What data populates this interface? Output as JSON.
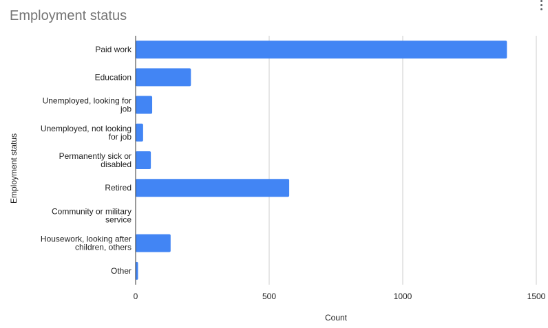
{
  "header": {
    "title": "Employment status"
  },
  "chart_data": {
    "type": "bar",
    "orientation": "horizontal",
    "title": "Employment status",
    "xlabel": "Count",
    "ylabel": "Employment status",
    "xlim": [
      0,
      1500
    ],
    "xticks": [
      0,
      500,
      1000,
      1500
    ],
    "grid": true,
    "legend": "none",
    "bar_color": "#4285f4",
    "categories": [
      [
        "Paid work"
      ],
      [
        "Education"
      ],
      [
        "Unemployed, looking for",
        "job"
      ],
      [
        "Unemployed, not looking",
        "for job"
      ],
      [
        "Permanently sick or",
        "disabled"
      ],
      [
        "Retired"
      ],
      [
        "Community or military",
        "service"
      ],
      [
        "Housework, looking after",
        "children, others"
      ],
      [
        "Other"
      ]
    ],
    "values": [
      1390,
      207,
      62,
      28,
      57,
      575,
      1,
      131,
      9
    ]
  },
  "colors": {
    "bar": "#4285f4",
    "grid": "#cccccc",
    "axis": "#333333",
    "title": "#757575",
    "text": "#222222"
  },
  "icons": {
    "menu": "more-vert-icon"
  }
}
